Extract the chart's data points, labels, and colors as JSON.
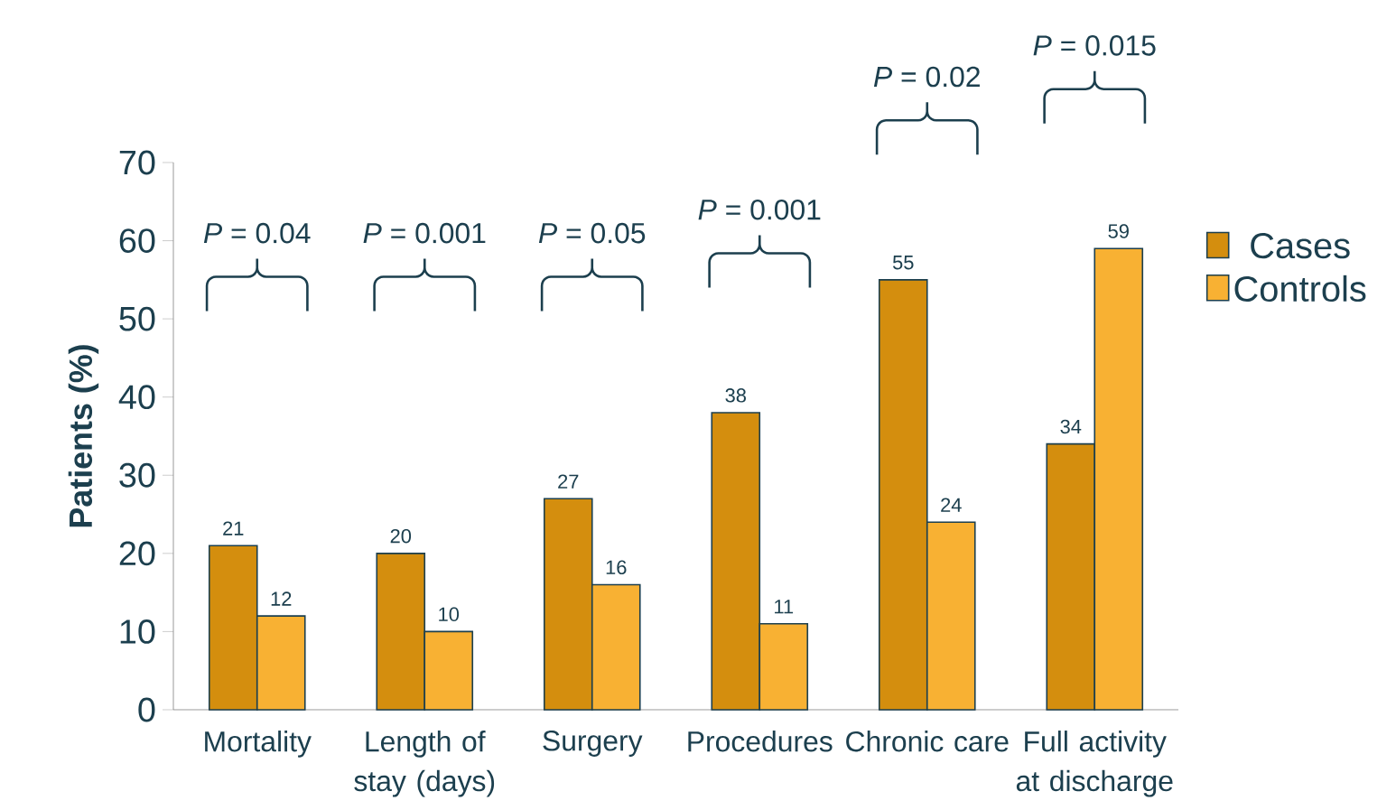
{
  "chart_data": {
    "type": "bar",
    "ylabel": "Patients (%)",
    "categories": [
      "Mortality",
      "Length of stay (days)",
      "Surgery",
      "Procedures",
      "Chronic care",
      "Full activity at discharge"
    ],
    "series": [
      {
        "name": "Cases",
        "color": "#d48e0e",
        "values": [
          21,
          20,
          27,
          38,
          55,
          34
        ]
      },
      {
        "name": "Controls",
        "color": "#f8b133",
        "values": [
          12,
          10,
          16,
          11,
          24,
          59
        ]
      }
    ],
    "ylim": [
      0,
      70
    ],
    "yticks": [
      0,
      10,
      20,
      30,
      40,
      50,
      60,
      70
    ],
    "data_labels": true,
    "legend": "right",
    "grid": false,
    "annotations": [
      "*P* = 0.04",
      "*P* = 0.001",
      "*P* = 0.05",
      "*P* = 0.001",
      "*P* = 0.02",
      "*P* = 0.015"
    ]
  }
}
